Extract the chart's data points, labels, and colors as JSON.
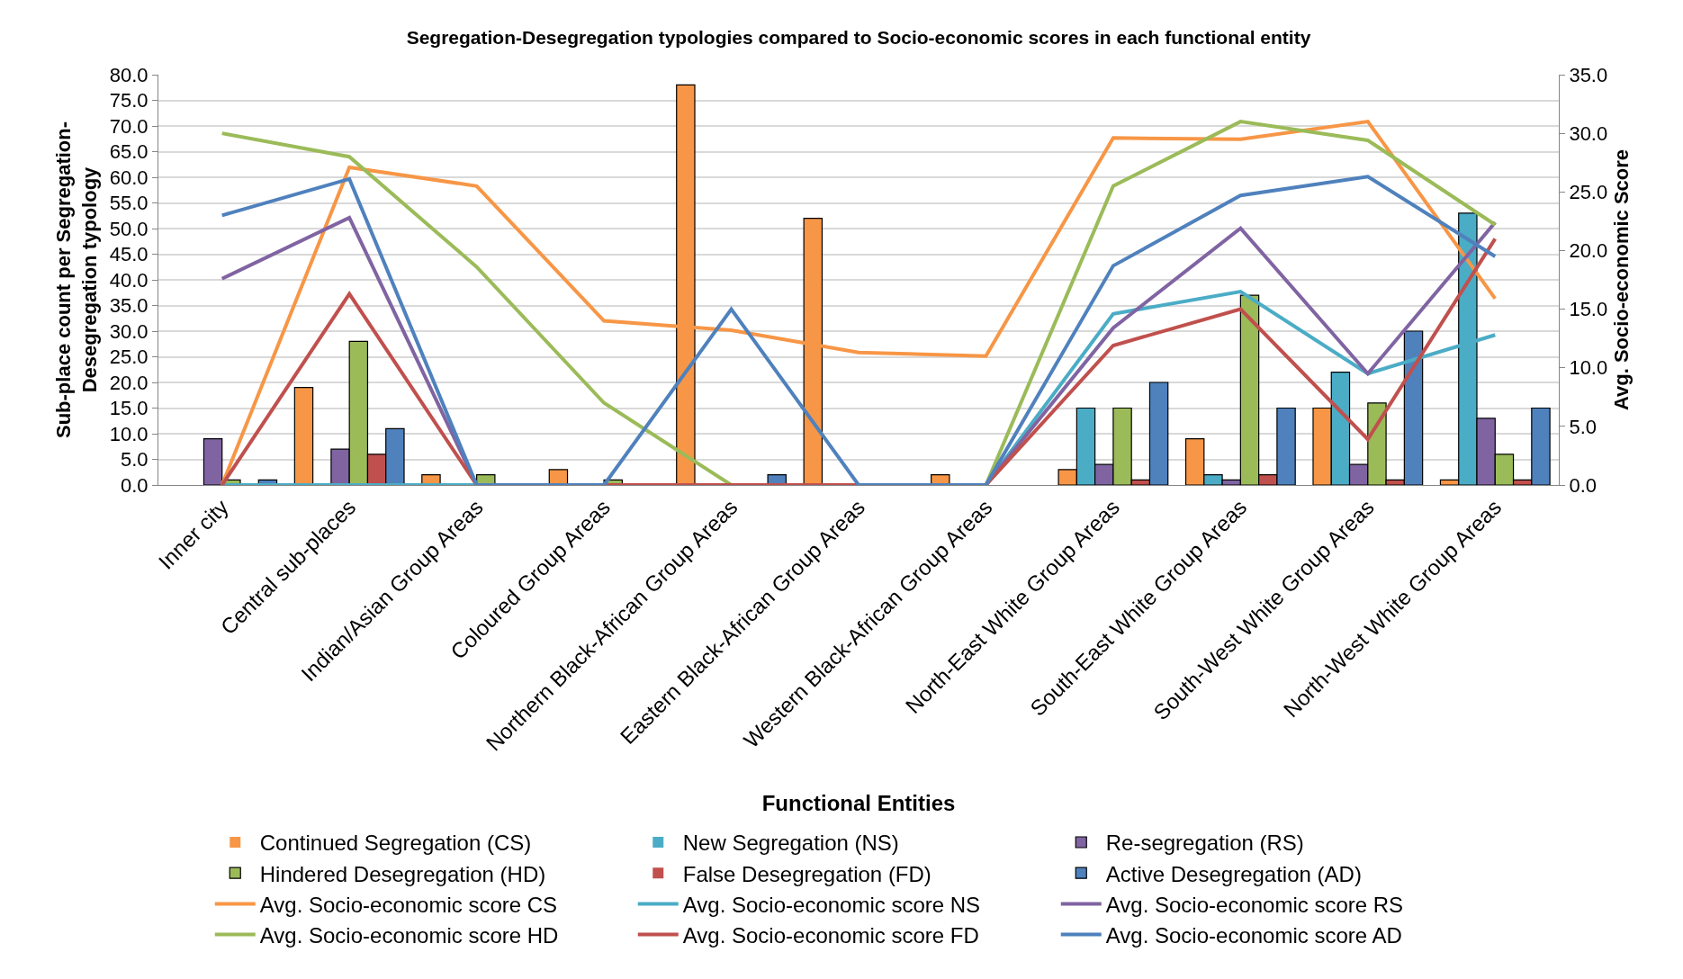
{
  "chart_data": {
    "type": "bar",
    "title": "Segregation-Desegregation typologies compared to Socio-economic scores in each functional entity",
    "xlabel": "Functional Entities",
    "ylabel": "Sub-place count per Segregation-\nDesegregation typology",
    "y2label": "Avg. Socio-economic Score",
    "categories": [
      "Inner city",
      "Central sub-places",
      "Indian/Asian Group Areas",
      "Coloured Group Areas",
      "Northern Black-African Group Areas",
      "Eastern Black-African Group Areas",
      "Western Black-African Group Areas",
      "North-East White Group Areas",
      "South-East White Group Areas",
      "South-West White Group Areas",
      "North-West White Group Areas"
    ],
    "series": [
      {
        "name": "Continued Segregation (CS)",
        "color": "#f79646",
        "values": [
          0,
          19,
          2,
          3,
          78,
          52,
          2,
          3,
          9,
          15,
          1
        ]
      },
      {
        "name": "New Segregation (NS)",
        "color": "#4bacc6",
        "values": [
          0,
          0,
          0,
          0,
          0,
          0,
          0,
          15,
          2,
          22,
          53
        ]
      },
      {
        "name": "Re-segregation (RS)",
        "color": "#8064a2",
        "values": [
          9,
          7,
          0,
          0,
          0,
          0,
          0,
          4,
          1,
          4,
          13
        ]
      },
      {
        "name": "Hindered Desegregation (HD)",
        "color": "#9bbb59",
        "values": [
          1,
          28,
          2,
          1,
          0,
          0,
          0,
          15,
          37,
          16,
          6
        ]
      },
      {
        "name": "False Desegregation (FD)",
        "color": "#c0504d",
        "values": [
          0,
          6,
          0,
          0,
          0,
          0,
          0,
          1,
          2,
          1,
          1
        ]
      },
      {
        "name": "Active Desegregation (AD)",
        "color": "#4f81bd",
        "values": [
          1,
          11,
          0,
          0,
          2,
          0,
          0,
          20,
          15,
          30,
          15
        ]
      },
      {
        "name": "Avg. Socio-economic score CS",
        "type": "line",
        "axis": "y2",
        "color": "#f79646",
        "values": [
          0,
          27.1,
          25.5,
          14.0,
          13.2,
          11.3,
          11.0,
          29.6,
          29.5,
          31.0,
          15.9
        ]
      },
      {
        "name": "Avg. Socio-economic score NS",
        "type": "line",
        "axis": "y2",
        "color": "#4bacc6",
        "values": [
          0,
          0,
          0,
          0,
          0,
          0,
          0,
          14.6,
          16.5,
          9.5,
          12.8
        ]
      },
      {
        "name": "Avg. Socio-economic score RS",
        "type": "line",
        "axis": "y2",
        "color": "#8064a2",
        "values": [
          17.6,
          22.8,
          0,
          0,
          0,
          0,
          0,
          13.4,
          21.9,
          9.5,
          22.4
        ]
      },
      {
        "name": "Avg. Socio-economic score HD",
        "type": "line",
        "axis": "y2",
        "color": "#9bbb59",
        "values": [
          30.0,
          28.0,
          18.6,
          7.0,
          0,
          0,
          0,
          25.5,
          31.0,
          29.4,
          22.2
        ]
      },
      {
        "name": "Avg. Socio-economic score FD",
        "type": "line",
        "axis": "y2",
        "color": "#c0504d",
        "values": [
          0,
          16.3,
          0,
          0,
          0,
          0,
          0,
          11.9,
          15.0,
          3.9,
          21.0
        ]
      },
      {
        "name": "Avg. Socio-economic score AD",
        "type": "line",
        "axis": "y2",
        "color": "#4f81bd",
        "values": [
          23.0,
          26.1,
          0,
          0,
          15.0,
          0,
          0,
          18.7,
          24.7,
          26.3,
          19.5
        ]
      }
    ],
    "ylim": [
      0,
      80
    ],
    "yticks": [
      {
        "value": 0,
        "label": "0.0"
      },
      {
        "value": 5,
        "label": "5.0"
      },
      {
        "value": 10,
        "label": "10.0"
      },
      {
        "value": 15,
        "label": "15.0"
      },
      {
        "value": 20,
        "label": "20.0"
      },
      {
        "value": 25,
        "label": "25.0"
      },
      {
        "value": 30,
        "label": "30.0"
      },
      {
        "value": 35,
        "label": "35.0"
      },
      {
        "value": 40,
        "label": "40.0"
      },
      {
        "value": 45,
        "label": "45.0"
      },
      {
        "value": 50,
        "label": "50.0"
      },
      {
        "value": 55,
        "label": "55.0"
      },
      {
        "value": 60,
        "label": "60.0"
      },
      {
        "value": 65,
        "label": "65.0"
      },
      {
        "value": 70,
        "label": "70.0"
      },
      {
        "value": 75,
        "label": "75.0"
      },
      {
        "value": 80,
        "label": "80.0"
      }
    ],
    "y2lim": [
      0,
      35
    ],
    "y2ticks": [
      {
        "value": 0,
        "label": "0.0"
      },
      {
        "value": 5,
        "label": "5.0"
      },
      {
        "value": 10,
        "label": "10.0"
      },
      {
        "value": 15,
        "label": "15.0"
      },
      {
        "value": 20,
        "label": "20.0"
      },
      {
        "value": 25,
        "label": "25.0"
      },
      {
        "value": 30,
        "label": "30.0"
      },
      {
        "value": 35,
        "label": "35.0"
      }
    ],
    "grid": "y",
    "legend": "bottom",
    "marker": "none",
    "line_style": "solid"
  }
}
